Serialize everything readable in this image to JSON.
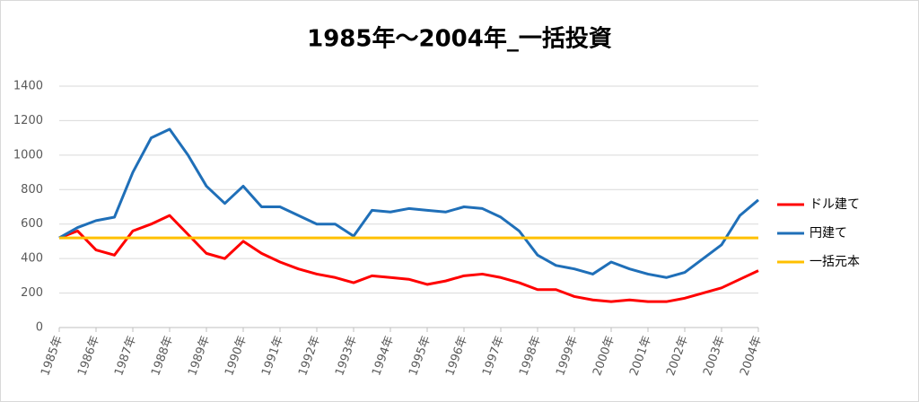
{
  "chart_data": {
    "type": "line",
    "title": "1985年～2004年_一括投資",
    "x": [
      1985,
      1985.5,
      1986,
      1986.5,
      1987,
      1987.5,
      1988,
      1988.5,
      1989,
      1989.5,
      1990,
      1990.5,
      1991,
      1991.5,
      1992,
      1992.5,
      1993,
      1993.5,
      1994,
      1994.5,
      1995,
      1995.5,
      1996,
      1996.5,
      1997,
      1997.5,
      1998,
      1998.5,
      1999,
      1999.5,
      2000,
      2000.5,
      2001,
      2001.5,
      2002,
      2002.5,
      2003,
      2003.5,
      2004
    ],
    "series": [
      {
        "name": "ドル建て",
        "color": "#ff0000",
        "values": [
          520,
          560,
          450,
          420,
          560,
          600,
          650,
          540,
          430,
          400,
          500,
          430,
          380,
          340,
          310,
          290,
          260,
          300,
          290,
          280,
          250,
          270,
          300,
          310,
          290,
          260,
          220,
          220,
          180,
          160,
          150,
          160,
          150,
          150,
          170,
          200,
          230,
          280,
          330
        ]
      },
      {
        "name": "円建て",
        "color": "#1f6fb8",
        "values": [
          520,
          580,
          620,
          640,
          900,
          1100,
          1150,
          1000,
          820,
          720,
          820,
          700,
          700,
          650,
          600,
          600,
          530,
          680,
          670,
          690,
          680,
          670,
          700,
          690,
          640,
          560,
          420,
          360,
          340,
          310,
          380,
          340,
          310,
          290,
          320,
          400,
          480,
          650,
          740
        ]
      },
      {
        "name": "一括元本",
        "color": "#ffc000",
        "values": [
          520,
          520,
          520,
          520,
          520,
          520,
          520,
          520,
          520,
          520,
          520,
          520,
          520,
          520,
          520,
          520,
          520,
          520,
          520,
          520,
          520,
          520,
          520,
          520,
          520,
          520,
          520,
          520,
          520,
          520,
          520,
          520,
          520,
          520,
          520,
          520,
          520,
          520,
          520
        ]
      }
    ],
    "xlim": [
      1985,
      2004
    ],
    "xticks": [
      {
        "value": 1985,
        "label": "1985年"
      },
      {
        "value": 1986,
        "label": "1986年"
      },
      {
        "value": 1987,
        "label": "1987年"
      },
      {
        "value": 1988,
        "label": "1988年"
      },
      {
        "value": 1989,
        "label": "1989年"
      },
      {
        "value": 1990,
        "label": "1990年"
      },
      {
        "value": 1991,
        "label": "1991年"
      },
      {
        "value": 1992,
        "label": "1992年"
      },
      {
        "value": 1993,
        "label": "1993年"
      },
      {
        "value": 1994,
        "label": "1994年"
      },
      {
        "value": 1995,
        "label": "1995年"
      },
      {
        "value": 1996,
        "label": "1996年"
      },
      {
        "value": 1997,
        "label": "1997年"
      },
      {
        "value": 1998,
        "label": "1998年"
      },
      {
        "value": 1999,
        "label": "1999年"
      },
      {
        "value": 2000,
        "label": "2000年"
      },
      {
        "value": 2001,
        "label": "2001年"
      },
      {
        "value": 2002,
        "label": "2002年"
      },
      {
        "value": 2003,
        "label": "2003年"
      },
      {
        "value": 2004,
        "label": "2004年"
      }
    ],
    "ylim": [
      0,
      1400
    ],
    "yticks": [
      0,
      200,
      400,
      600,
      800,
      1000,
      1200,
      1400
    ],
    "grid": true,
    "legend": "right"
  }
}
